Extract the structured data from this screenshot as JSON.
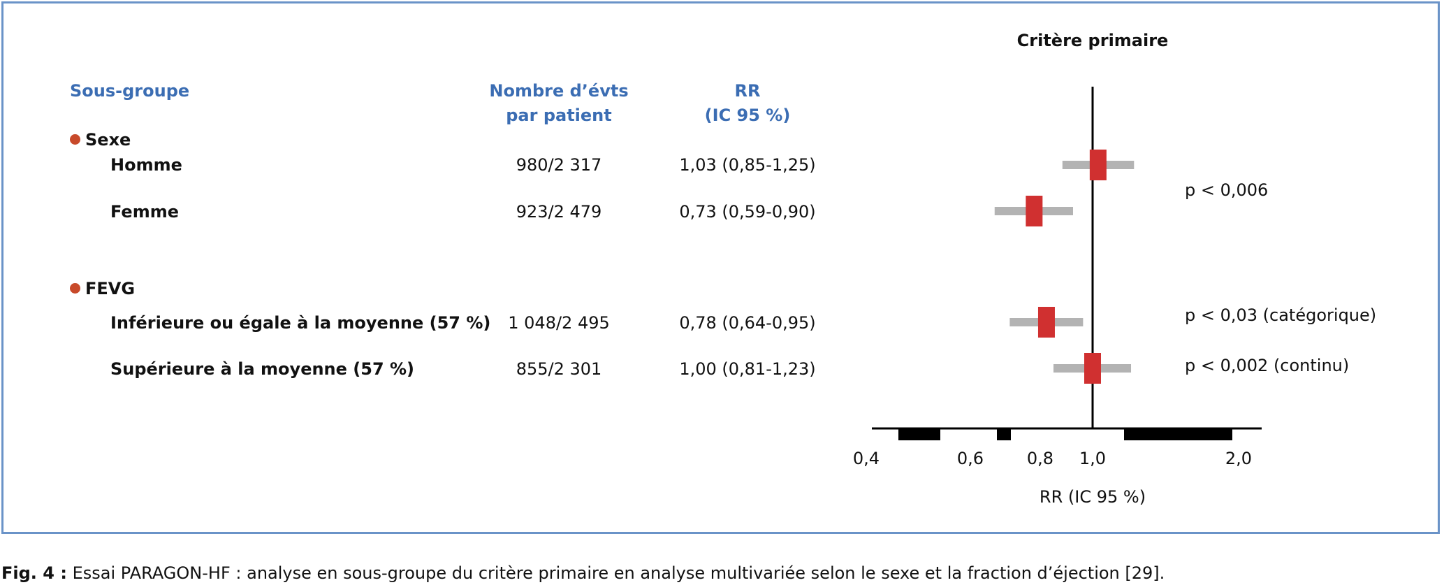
{
  "headers": {
    "subgroup": "Sous-groupe",
    "events_line1": "Nombre d’évts",
    "events_line2": "par patient",
    "rr_line1": "RR",
    "rr_line2": "(IC 95 %)"
  },
  "groups": [
    {
      "name": "Sexe",
      "rows": [
        {
          "label": "Homme",
          "events": "980/2 317",
          "rr_text": "1,03 (0,85-1,25)"
        },
        {
          "label": "Femme",
          "events": "923/2 479",
          "rr_text": "0,73 (0,59-0,90)"
        }
      ]
    },
    {
      "name": "FEVG",
      "rows": [
        {
          "label": "Inférieure ou égale à la moyenne (57 %)",
          "events": "1 048/2 495",
          "rr_text": "0,78 (0,64-0,95)"
        },
        {
          "label": "Supérieure à la moyenne (57 %)",
          "events": "855/2 301",
          "rr_text": "1,00 (0,81-1,23)"
        }
      ]
    }
  ],
  "pvalues": {
    "sexe": "p < 0,006",
    "fevg_cat": "p < 0,03 (catégorique)",
    "fevg_cont": "p < 0,002 (continu)"
  },
  "caption": {
    "label": "Fig. 4 :",
    "text": "Essai PARAGON-HF : analyse en sous-groupe du critère primaire en analyse multivariée selon le sexe et la fraction d’éjection [29]."
  },
  "colors": {
    "header_blue": "#3b6db3",
    "bullet": "#c84a2a",
    "box": "#d03030",
    "ci": "#b3b3b3",
    "frame": "#6a93c8"
  },
  "chart_data": {
    "type": "forest",
    "title": "Critère primaire",
    "xlabel": "RR (IC 95 %)",
    "x_scale": "log",
    "reference_line": 1.0,
    "xticks": [
      0.4,
      0.6,
      0.8,
      1.0,
      2.0
    ],
    "xtick_labels": [
      "0,4",
      "0,6",
      "0,8",
      "1,0",
      "2,0"
    ],
    "series": [
      {
        "name": "Homme",
        "rr": 1.03,
        "ci_low": 0.85,
        "ci_high": 1.25
      },
      {
        "name": "Femme",
        "rr": 0.73,
        "ci_low": 0.59,
        "ci_high": 0.9
      },
      {
        "name": "Inférieure ou égale à la moyenne (57 %)",
        "rr": 0.78,
        "ci_low": 0.64,
        "ci_high": 0.95
      },
      {
        "name": "Supérieure à la moyenne (57 %)",
        "rr": 1.0,
        "ci_low": 0.81,
        "ci_high": 1.23
      }
    ]
  }
}
